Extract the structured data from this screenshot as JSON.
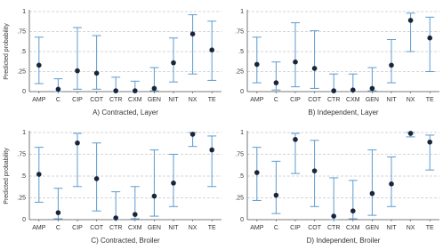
{
  "chart_data": [
    {
      "type": "errorbar",
      "title": "A) Contracted, Layer",
      "ylabel": "Predicted probability",
      "categories": [
        "AMP",
        "C",
        "CIP",
        "COT",
        "CTR",
        "CXM",
        "GEN",
        "NIT",
        "NX",
        "TE"
      ],
      "values": [
        0.33,
        0.03,
        0.26,
        0.23,
        0.01,
        0.01,
        0.04,
        0.36,
        0.72,
        0.52
      ],
      "lower": [
        0.1,
        0.0,
        0.03,
        0.03,
        0.0,
        0.0,
        0.01,
        0.12,
        0.22,
        0.14
      ],
      "upper": [
        0.68,
        0.16,
        0.8,
        0.7,
        0.18,
        0.13,
        0.3,
        0.67,
        0.96,
        0.88
      ],
      "color": "#5b9bd0",
      "point_color": "#1b2438",
      "ylim": [
        0,
        1
      ],
      "yticks": [
        0,
        {
          "value": 0.25,
          "label": ".25"
        },
        {
          "value": 0.5,
          "label": ".5"
        },
        {
          "value": 0.75,
          "label": ".75"
        },
        1
      ],
      "grid": true
    },
    {
      "type": "errorbar",
      "title": "B) Independent, Layer",
      "categories": [
        "AMP",
        "C",
        "CIP",
        "COT",
        "CTR",
        "CXM",
        "GEN",
        "NIT",
        "NX",
        "TE"
      ],
      "values": [
        0.34,
        0.11,
        0.37,
        0.29,
        0.01,
        0.02,
        0.04,
        0.33,
        0.89,
        0.67
      ],
      "lower": [
        0.11,
        0.02,
        0.06,
        0.04,
        0.0,
        0.0,
        0.01,
        0.11,
        0.5,
        0.25
      ],
      "upper": [
        0.68,
        0.37,
        0.86,
        0.76,
        0.22,
        0.22,
        0.3,
        0.65,
        0.98,
        0.93
      ],
      "color": "#5b9bd0",
      "point_color": "#1b2438",
      "ylim": [
        0,
        1
      ],
      "yticks": [
        0,
        {
          "value": 0.25,
          "label": ".25"
        },
        {
          "value": 0.5,
          "label": ".5"
        },
        {
          "value": 0.75,
          "label": ".75"
        },
        1
      ],
      "grid": true
    },
    {
      "type": "errorbar",
      "title": "C) Contracted, Broiler",
      "ylabel": "Predicted probability",
      "categories": [
        "AMP",
        "C",
        "CIP",
        "COT",
        "CTR",
        "CXM",
        "GEN",
        "NIT",
        "NX",
        "TE"
      ],
      "values": [
        0.52,
        0.08,
        0.88,
        0.47,
        0.02,
        0.06,
        0.27,
        0.42,
        0.98,
        0.8
      ],
      "lower": [
        0.2,
        0.01,
        0.38,
        0.1,
        0.0,
        0.01,
        0.04,
        0.15,
        0.84,
        0.38
      ],
      "upper": [
        0.83,
        0.36,
        0.99,
        0.88,
        0.32,
        0.38,
        0.8,
        0.75,
        1.0,
        0.96
      ],
      "color": "#5b9bd0",
      "point_color": "#1b2438",
      "ylim": [
        0,
        1
      ],
      "yticks": [
        0,
        {
          "value": 0.25,
          "label": ".25"
        },
        {
          "value": 0.5,
          "label": ".5"
        },
        {
          "value": 0.75,
          "label": ".75"
        },
        1
      ],
      "grid": true
    },
    {
      "type": "errorbar",
      "title": "D) Independent, Broiler",
      "categories": [
        "AMP",
        "C",
        "CIP",
        "COT",
        "CTR",
        "CXM",
        "GEN",
        "NIT",
        "NX",
        "TE"
      ],
      "values": [
        0.54,
        0.28,
        0.92,
        0.56,
        0.04,
        0.1,
        0.3,
        0.41,
        0.99,
        0.89
      ],
      "lower": [
        0.22,
        0.07,
        0.53,
        0.15,
        0.0,
        0.01,
        0.05,
        0.15,
        0.95,
        0.57
      ],
      "upper": [
        0.83,
        0.67,
        0.99,
        0.91,
        0.48,
        0.45,
        0.8,
        0.72,
        1.0,
        0.97
      ],
      "color": "#5b9bd0",
      "point_color": "#1b2438",
      "ylim": [
        0,
        1
      ],
      "yticks": [
        0,
        {
          "value": 0.25,
          "label": ".25"
        },
        {
          "value": 0.5,
          "label": ".5"
        },
        {
          "value": 0.75,
          "label": ".75"
        },
        1
      ],
      "grid": true
    }
  ]
}
